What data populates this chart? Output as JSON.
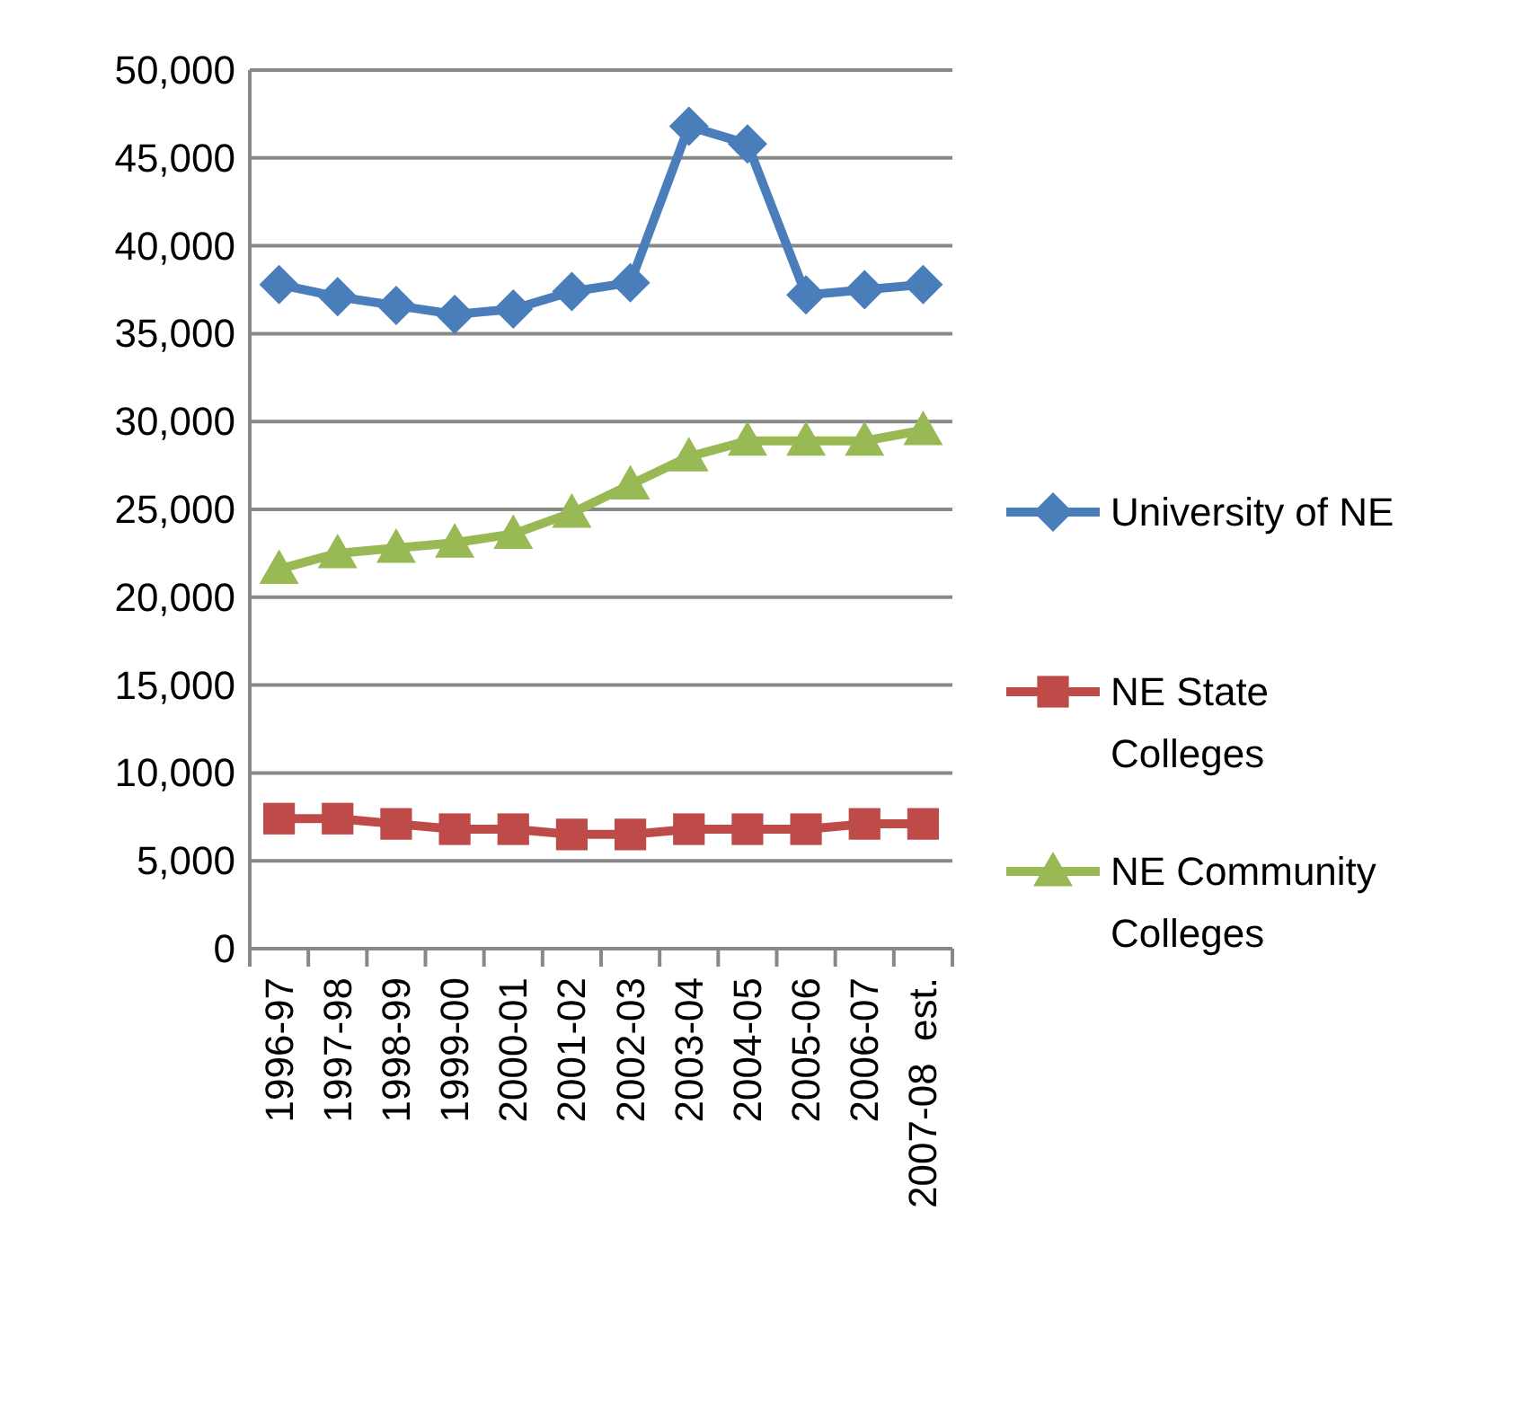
{
  "chart_data": {
    "type": "line",
    "categories": [
      "1996-97",
      "1997-98",
      "1998-99",
      "1999-00",
      "2000-01",
      "2001-02",
      "2002-03",
      "2003-04",
      "2004-05",
      "2005-06",
      "2006-07",
      "2007-08  est."
    ],
    "series": [
      {
        "name": "University of NE",
        "color": "#4a7ebb",
        "marker": "diamond",
        "values": [
          37800,
          37100,
          36600,
          36100,
          36400,
          37400,
          37900,
          46800,
          45800,
          37200,
          37500,
          37800
        ]
      },
      {
        "name": "NE State Colleges",
        "color": "#be4b48",
        "marker": "square",
        "values": [
          7400,
          7400,
          7100,
          6800,
          6800,
          6500,
          6500,
          6800,
          6800,
          6800,
          7100,
          7100
        ]
      },
      {
        "name": "NE Community Colleges",
        "color": "#98b954",
        "marker": "triangle",
        "values": [
          21600,
          22500,
          22800,
          23100,
          23600,
          24800,
          26400,
          28000,
          28900,
          28900,
          28900,
          29500
        ]
      }
    ],
    "ylim": [
      0,
      50000
    ],
    "yticks": [
      {
        "value": 0,
        "label": "0"
      },
      {
        "value": 5000,
        "label": "5,000"
      },
      {
        "value": 10000,
        "label": "10,000"
      },
      {
        "value": 15000,
        "label": "15,000"
      },
      {
        "value": 20000,
        "label": "20,000"
      },
      {
        "value": 25000,
        "label": "25,000"
      },
      {
        "value": 30000,
        "label": "30,000"
      },
      {
        "value": 35000,
        "label": "35,000"
      },
      {
        "value": 40000,
        "label": "40,000"
      },
      {
        "value": 45000,
        "label": "45,000"
      },
      {
        "value": 50000,
        "label": "50,000"
      }
    ],
    "grid": "y",
    "legend": "right",
    "line_style": "solid"
  }
}
